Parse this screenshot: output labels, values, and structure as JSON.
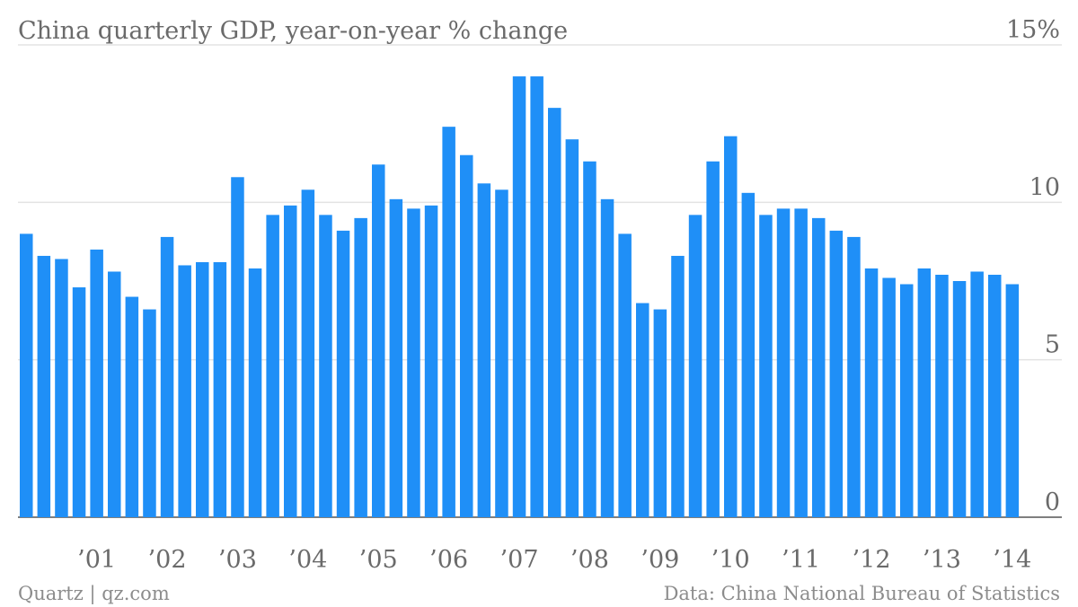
{
  "chart_data": {
    "type": "bar",
    "title": "China quarterly GDP, year-on-year % change",
    "ylabel": "",
    "xlabel": "",
    "ylim": [
      0,
      15
    ],
    "yticks": [
      {
        "value": 0,
        "label": "0"
      },
      {
        "value": 5,
        "label": "5"
      },
      {
        "value": 10,
        "label": "10"
      },
      {
        "value": 15,
        "label": "15%"
      }
    ],
    "categories": [
      "2000Q2",
      "2000Q3",
      "2000Q4",
      "2001Q1",
      "2001Q2",
      "2001Q3",
      "2001Q4",
      "2002Q1",
      "2002Q2",
      "2002Q3",
      "2002Q4",
      "2003Q1",
      "2003Q2",
      "2003Q3",
      "2003Q4",
      "2004Q1",
      "2004Q2",
      "2004Q3",
      "2004Q4",
      "2005Q1",
      "2005Q2",
      "2005Q3",
      "2005Q4",
      "2006Q1",
      "2006Q2",
      "2006Q3",
      "2006Q4",
      "2007Q1",
      "2007Q2",
      "2007Q3",
      "2007Q4",
      "2008Q1",
      "2008Q2",
      "2008Q3",
      "2008Q4",
      "2009Q1",
      "2009Q2",
      "2009Q3",
      "2009Q4",
      "2010Q1",
      "2010Q2",
      "2010Q3",
      "2010Q4",
      "2011Q1",
      "2011Q2",
      "2011Q3",
      "2011Q4",
      "2012Q1",
      "2012Q2",
      "2012Q3",
      "2012Q4",
      "2013Q1",
      "2013Q2",
      "2013Q3",
      "2013Q4",
      "2014Q1",
      "2014Q2"
    ],
    "values": [
      9.0,
      8.3,
      8.2,
      7.3,
      8.5,
      7.8,
      7.0,
      6.6,
      8.9,
      8.0,
      8.1,
      8.1,
      10.8,
      7.9,
      9.6,
      9.9,
      10.4,
      9.6,
      9.1,
      9.5,
      11.2,
      10.1,
      9.8,
      9.9,
      12.4,
      11.5,
      10.6,
      10.4,
      14.0,
      14.0,
      13.0,
      12.0,
      11.3,
      10.1,
      9.0,
      6.8,
      6.6,
      8.3,
      9.6,
      11.3,
      12.1,
      10.3,
      9.6,
      9.8,
      9.8,
      9.5,
      9.1,
      8.9,
      7.9,
      7.6,
      7.4,
      7.9,
      7.7,
      7.5,
      7.8,
      7.7,
      7.4
    ],
    "xtick_labels": [
      {
        "label": "’01",
        "index": 4
      },
      {
        "label": "’02",
        "index": 8
      },
      {
        "label": "’03",
        "index": 12
      },
      {
        "label": "’04",
        "index": 16
      },
      {
        "label": "’05",
        "index": 20
      },
      {
        "label": "’06",
        "index": 24
      },
      {
        "label": "’07",
        "index": 28
      },
      {
        "label": "’08",
        "index": 32
      },
      {
        "label": "’09",
        "index": 36
      },
      {
        "label": "’10",
        "index": 40
      },
      {
        "label": "’11",
        "index": 44
      },
      {
        "label": "’12",
        "index": 48
      },
      {
        "label": "’13",
        "index": 52
      },
      {
        "label": "’14",
        "index": 56
      }
    ],
    "grid": true,
    "bar_color": "#1f8ff7"
  },
  "footer": {
    "source_left": "Quartz | qz.com",
    "source_right": "Data: China National Bureau of Statistics"
  }
}
